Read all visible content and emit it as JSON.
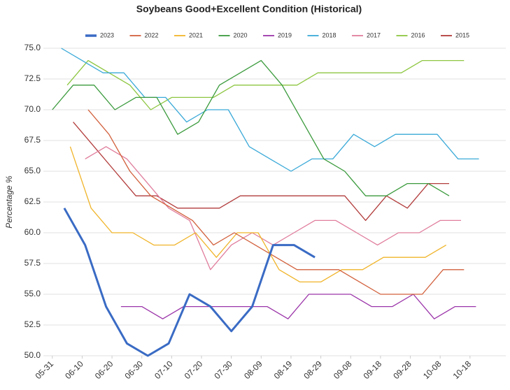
{
  "chart_data": {
    "type": "line",
    "title": "Soybeans Good+Excellent Condition (Historical)",
    "y_label": "Percentage %",
    "xlim": [
      "05-28",
      "10-30"
    ],
    "xticks": [
      "05-31",
      "06-10",
      "06-20",
      "06-30",
      "07-10",
      "07-20",
      "07-30",
      "08-09",
      "08-19",
      "08-29",
      "09-08",
      "09-18",
      "09-28",
      "10-08",
      "10-18"
    ],
    "ylim": [
      50,
      75
    ],
    "yticks": [
      {
        "value": 50,
        "label": "50.0"
      },
      {
        "value": 52.5,
        "label": "52.5"
      },
      {
        "value": 55,
        "label": "55.0"
      },
      {
        "value": 57.5,
        "label": "57.5"
      },
      {
        "value": 60,
        "label": "60.0"
      },
      {
        "value": 62.5,
        "label": "62.5"
      },
      {
        "value": 65,
        "label": "65.0"
      },
      {
        "value": 67.5,
        "label": "67.5"
      },
      {
        "value": 70,
        "label": "70.0"
      },
      {
        "value": 72.5,
        "label": "72.5"
      },
      {
        "value": 75,
        "label": "75.0"
      }
    ],
    "grid": true,
    "legend": "top",
    "series": [
      {
        "name": "2023",
        "color": "#3a6bc4",
        "width": 3,
        "x": [
          "06-04",
          "06-11",
          "06-18",
          "06-25",
          "07-02",
          "07-09",
          "07-16",
          "07-23",
          "07-30",
          "08-06",
          "08-13",
          "08-20",
          "08-27"
        ],
        "values": [
          62,
          59,
          54,
          51,
          50,
          51,
          55,
          54,
          52,
          54,
          59,
          59,
          58
        ]
      },
      {
        "name": "2022",
        "color": "#d2603c",
        "width": 1.3,
        "x": [
          "06-12",
          "06-19",
          "06-26",
          "07-03",
          "07-10",
          "07-17",
          "07-24",
          "07-31",
          "08-07",
          "08-14",
          "08-21",
          "08-28",
          "09-04",
          "09-11",
          "09-18",
          "09-25",
          "10-02",
          "10-09",
          "10-16"
        ],
        "values": [
          70,
          68,
          65,
          63,
          62,
          61,
          59,
          60,
          59,
          58,
          57,
          57,
          57,
          56,
          55,
          55,
          55,
          57,
          57
        ]
      },
      {
        "name": "2021",
        "color": "#f0b429",
        "width": 1.3,
        "x": [
          "06-06",
          "06-13",
          "06-20",
          "06-27",
          "07-04",
          "07-11",
          "07-18",
          "07-25",
          "08-01",
          "08-08",
          "08-15",
          "08-22",
          "08-29",
          "09-05",
          "09-12",
          "09-19",
          "09-26",
          "10-03",
          "10-10"
        ],
        "values": [
          67,
          62,
          60,
          60,
          59,
          59,
          60,
          58,
          60,
          60,
          57,
          56,
          56,
          57,
          57,
          58,
          58,
          58,
          59
        ]
      },
      {
        "name": "2020",
        "color": "#3a9a3c",
        "width": 1.3,
        "x": [
          "05-31",
          "06-07",
          "06-14",
          "06-21",
          "06-28",
          "07-05",
          "07-12",
          "07-19",
          "07-26",
          "08-02",
          "08-09",
          "08-16",
          "08-23",
          "08-30",
          "09-06",
          "09-13",
          "09-20",
          "09-27",
          "10-04",
          "10-11"
        ],
        "values": [
          70,
          72,
          72,
          70,
          71,
          71,
          68,
          69,
          72,
          73,
          74,
          72,
          69,
          66,
          65,
          63,
          63,
          64,
          64,
          63
        ]
      },
      {
        "name": "2019",
        "color": "#9b34a9",
        "width": 1.3,
        "x": [
          "06-23",
          "06-30",
          "07-07",
          "07-14",
          "07-21",
          "07-28",
          "08-04",
          "08-11",
          "08-18",
          "08-25",
          "09-01",
          "09-08",
          "09-15",
          "09-22",
          "09-29",
          "10-06",
          "10-13",
          "10-20"
        ],
        "values": [
          54,
          54,
          53,
          54,
          54,
          54,
          54,
          54,
          53,
          55,
          55,
          55,
          54,
          54,
          55,
          53,
          54,
          54
        ]
      },
      {
        "name": "2018",
        "color": "#3aa9d8",
        "width": 1.3,
        "x": [
          "06-03",
          "06-10",
          "06-17",
          "06-24",
          "07-01",
          "07-08",
          "07-15",
          "07-22",
          "07-29",
          "08-05",
          "08-12",
          "08-19",
          "08-26",
          "09-02",
          "09-09",
          "09-16",
          "09-23",
          "09-30",
          "10-07",
          "10-14",
          "10-21"
        ],
        "values": [
          75,
          74,
          73,
          73,
          71,
          71,
          69,
          70,
          70,
          67,
          66,
          65,
          66,
          66,
          68,
          67,
          68,
          68,
          68,
          66,
          66
        ]
      },
      {
        "name": "2017",
        "color": "#e07d9c",
        "width": 1.3,
        "x": [
          "06-11",
          "06-18",
          "06-25",
          "07-02",
          "07-09",
          "07-16",
          "07-23",
          "07-30",
          "08-06",
          "08-13",
          "08-20",
          "08-27",
          "09-03",
          "09-10",
          "09-17",
          "09-24",
          "10-01",
          "10-08",
          "10-15"
        ],
        "values": [
          66,
          67,
          66,
          64,
          62,
          61,
          57,
          59,
          60,
          59,
          60,
          61,
          61,
          60,
          59,
          60,
          60,
          61,
          61
        ]
      },
      {
        "name": "2016",
        "color": "#8dc640",
        "width": 1.3,
        "x": [
          "06-05",
          "06-12",
          "06-19",
          "06-26",
          "07-03",
          "07-10",
          "07-17",
          "07-24",
          "07-31",
          "08-07",
          "08-14",
          "08-21",
          "08-28",
          "09-04",
          "09-11",
          "09-18",
          "09-25",
          "10-02",
          "10-09",
          "10-16"
        ],
        "values": [
          72,
          74,
          73,
          72,
          70,
          71,
          71,
          71,
          72,
          72,
          72,
          72,
          73,
          73,
          73,
          73,
          73,
          74,
          74,
          74
        ]
      },
      {
        "name": "2015",
        "color": "#b23b3b",
        "width": 1.3,
        "x": [
          "06-07",
          "06-14",
          "06-21",
          "06-28",
          "07-05",
          "07-12",
          "07-19",
          "07-26",
          "08-02",
          "08-09",
          "08-16",
          "08-23",
          "08-30",
          "09-06",
          "09-13",
          "09-20",
          "09-27",
          "10-04",
          "10-11"
        ],
        "values": [
          69,
          67,
          65,
          63,
          63,
          62,
          62,
          62,
          63,
          63,
          63,
          63,
          63,
          63,
          61,
          63,
          62,
          64,
          64
        ]
      }
    ]
  }
}
